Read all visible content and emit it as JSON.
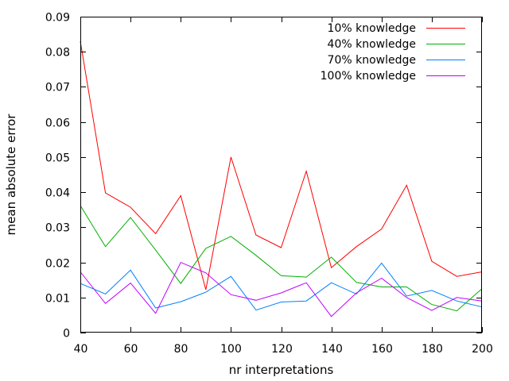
{
  "chart_data": {
    "type": "line",
    "xlabel": "nr interpretations",
    "ylabel": "mean absolute error",
    "xlim": [
      40,
      200
    ],
    "ylim": [
      0,
      0.09
    ],
    "xticks": [
      40,
      60,
      80,
      100,
      120,
      140,
      160,
      180,
      200
    ],
    "xtick_labels": [
      "40",
      "60",
      "80",
      "100",
      "120",
      "140",
      "160",
      "180",
      "200"
    ],
    "yticks": [
      0,
      0.01,
      0.02,
      0.03,
      0.04,
      0.05,
      0.06,
      0.07,
      0.08,
      0.09
    ],
    "ytick_labels": [
      "0",
      "0.01",
      "0.02",
      "0.03",
      "0.04",
      "0.05",
      "0.06",
      "0.07",
      "0.08",
      "0.09"
    ],
    "grid": false,
    "legend_position": "top-right",
    "x": [
      40,
      50,
      60,
      70,
      80,
      90,
      100,
      110,
      120,
      130,
      140,
      150,
      160,
      170,
      180,
      190,
      200
    ],
    "series": [
      {
        "name": "10% knowledge",
        "color": "#ff0000",
        "values": [
          0.083,
          0.0398,
          0.0357,
          0.0282,
          0.039,
          0.0122,
          0.05,
          0.0278,
          0.0242,
          0.046,
          0.0185,
          0.0245,
          0.0295,
          0.042,
          0.0203,
          0.016,
          0.0173
        ]
      },
      {
        "name": "40% knowledge",
        "color": "#00b000",
        "values": [
          0.0362,
          0.0245,
          0.0328,
          0.0235,
          0.014,
          0.024,
          0.0274,
          0.022,
          0.0162,
          0.0158,
          0.0215,
          0.0143,
          0.013,
          0.013,
          0.008,
          0.0062,
          0.0125
        ]
      },
      {
        "name": "70% knowledge",
        "color": "#0080ff",
        "values": [
          0.014,
          0.011,
          0.0178,
          0.007,
          0.0088,
          0.0115,
          0.016,
          0.0064,
          0.0087,
          0.009,
          0.0142,
          0.011,
          0.0198,
          0.0104,
          0.012,
          0.009,
          0.0073
        ]
      },
      {
        "name": "100% knowledge",
        "color": "#c000ff",
        "values": [
          0.0173,
          0.0083,
          0.0141,
          0.0055,
          0.02,
          0.017,
          0.0108,
          0.0092,
          0.0113,
          0.0142,
          0.0046,
          0.0113,
          0.0155,
          0.01,
          0.0063,
          0.01,
          0.009
        ]
      }
    ]
  }
}
